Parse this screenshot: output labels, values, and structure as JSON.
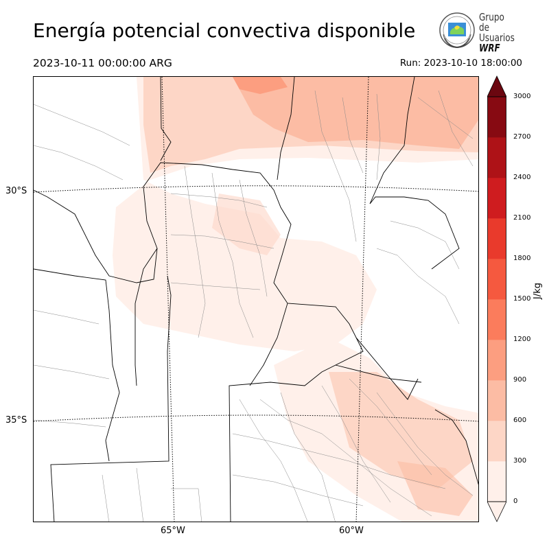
{
  "header": {
    "title": "Energía potencial convectiva disponible",
    "valid_time": "2023-10-11 00:00:00 ARG",
    "run_time": "Run: 2023-10-10 18:00:00"
  },
  "logo": {
    "line1": "Grupo de",
    "line2": "Usuarios",
    "line3": "WRF"
  },
  "map": {
    "variable": "CAPE",
    "lat_labels": [
      "30°S",
      "35°S"
    ],
    "lon_labels": [
      "65°W",
      "60°W"
    ]
  },
  "colorbar": {
    "unit": "J/kg",
    "ticks": [
      "0",
      "300",
      "600",
      "900",
      "1200",
      "1500",
      "1800",
      "2100",
      "2400",
      "2700",
      "3000"
    ],
    "colors": [
      "#fff0ea",
      "#fdd6c6",
      "#fcbca4",
      "#fc9e80",
      "#fb7c5c",
      "#f5593f",
      "#e93a2c",
      "#cf1c1f",
      "#ae1217",
      "#870a12",
      "#6b0710"
    ]
  }
}
